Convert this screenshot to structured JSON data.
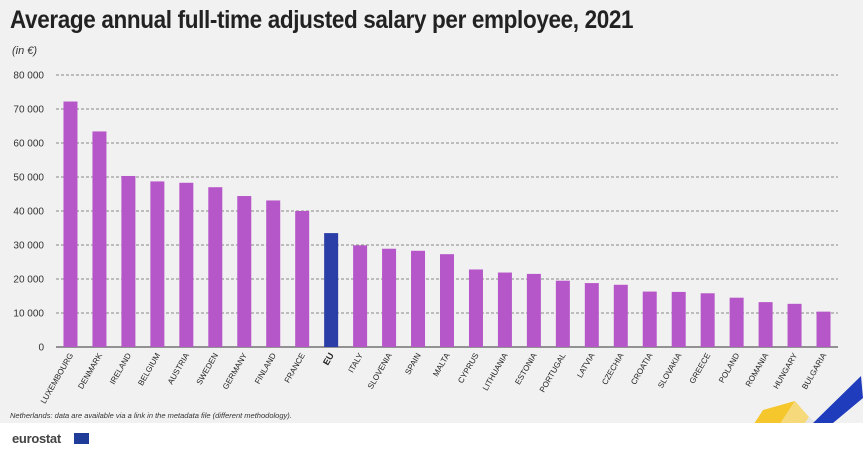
{
  "title": "Average annual full-time adjusted salary per employee, 2021",
  "subtitle": "(in €)",
  "footnote": "Netherlands: data are available via a link in the metadata file (different methodology).",
  "logo": {
    "text": "eurostat",
    "icon": "eu-flag-icon"
  },
  "colors": {
    "bar": "#b657c9",
    "highlight": "#2b3ea8",
    "grid": "#666666",
    "background": "#f1f1f1"
  },
  "chart_data": {
    "type": "bar",
    "categories": [
      "LUXEMBOURG",
      "DENMARK",
      "IRELAND",
      "BELGIUM",
      "AUSTRIA",
      "SWEDEN",
      "GERMANY",
      "FINLAND",
      "FRANCE",
      "EU",
      "ITALY",
      "SLOVENIA",
      "SPAIN",
      "MALTA",
      "CYPRUS",
      "LITHUANIA",
      "ESTONIA",
      "PORTUGAL",
      "LATVIA",
      "CZECHIA",
      "CROATIA",
      "SLOVAKIA",
      "GREECE",
      "POLAND",
      "ROMANIA",
      "HUNGARY",
      "BULGARIA"
    ],
    "values": [
      72200,
      63400,
      50300,
      48700,
      48300,
      47000,
      44400,
      43100,
      40000,
      33500,
      29900,
      28900,
      28300,
      27300,
      22800,
      21900,
      21500,
      19500,
      18800,
      18300,
      16300,
      16200,
      15800,
      14500,
      13200,
      12700,
      10400
    ],
    "highlight": "EU",
    "yticks": [
      "0",
      "10 000",
      "20 000",
      "30 000",
      "40 000",
      "50 000",
      "60 000",
      "70 000",
      "80 000"
    ],
    "ylim": [
      0,
      80000
    ],
    "grid": "dashed horizontal",
    "legend": "none"
  }
}
